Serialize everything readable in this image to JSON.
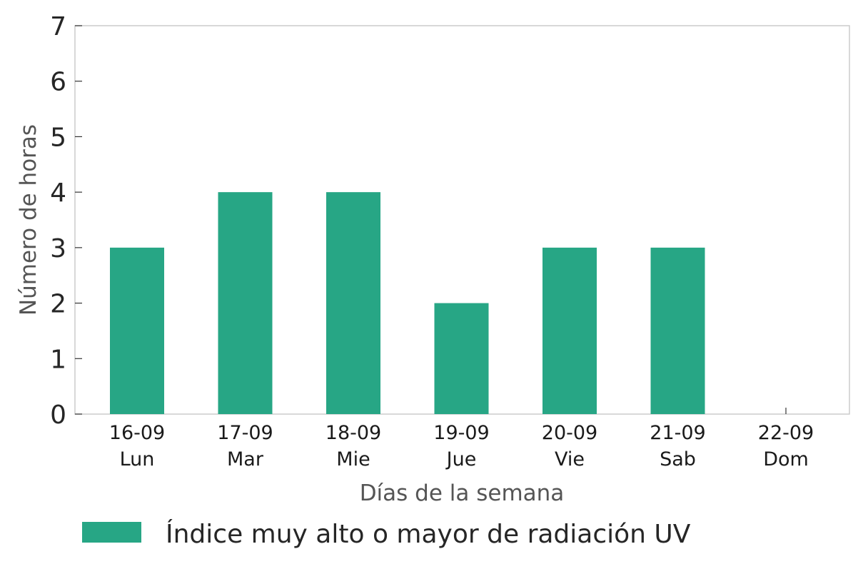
{
  "chart_data": {
    "type": "bar",
    "title": "",
    "xlabel": "Días de la semana",
    "ylabel": "Número de horas",
    "ylim": [
      0,
      7
    ],
    "yticks": [
      0,
      1,
      2,
      3,
      4,
      5,
      6,
      7
    ],
    "categories": [
      {
        "date": "16-09",
        "day": "Lun"
      },
      {
        "date": "17-09",
        "day": "Mar"
      },
      {
        "date": "18-09",
        "day": "Mie"
      },
      {
        "date": "19-09",
        "day": "Jue"
      },
      {
        "date": "20-09",
        "day": "Vie"
      },
      {
        "date": "21-09",
        "day": "Sab"
      },
      {
        "date": "22-09",
        "day": "Dom"
      }
    ],
    "series": [
      {
        "name": "Índice muy alto o mayor de radiación UV",
        "color": "#27a685",
        "values": [
          3,
          4,
          4,
          2,
          3,
          3,
          0
        ]
      }
    ],
    "grid": false,
    "legend_position": "bottom"
  }
}
